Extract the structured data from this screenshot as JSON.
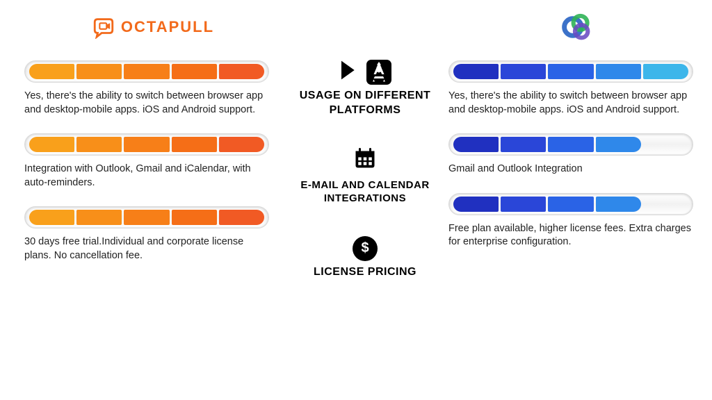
{
  "brands": {
    "left": {
      "name": "OCTAPULL",
      "name_color": "#f26a1b",
      "icon_color": "#f26a1b"
    },
    "right": {
      "ring_colors": [
        "#2b66c4",
        "#2fb357",
        "#7e57c2"
      ]
    }
  },
  "palette": {
    "left_segments": [
      "#f9a01b",
      "#f88f19",
      "#f77f18",
      "#f56e17",
      "#f15a24"
    ],
    "right_segments": [
      "#2030c0",
      "#2a46d8",
      "#2a63e6",
      "#2f88ea",
      "#3db6ea"
    ]
  },
  "rows": [
    {
      "title": "USAGE ON DIFFERENT PLATFORMS",
      "icon": "platforms",
      "left": {
        "filled": 5,
        "text": "Yes, there's the ability to switch between browser app and desktop-mobile apps. iOS and Android support."
      },
      "right": {
        "filled": 5,
        "text": "Yes, there's the ability to switch between browser app and desktop-mobile apps. iOS and Android support."
      }
    },
    {
      "title": "E-MAIL AND CALENDAR INTEGRATIONS",
      "icon": "calendar",
      "left": {
        "filled": 5,
        "text": "Integration with Outlook, Gmail and iCalendar, with auto-reminders."
      },
      "right": {
        "filled": 4,
        "text": "Gmail and Outlook Integration"
      }
    },
    {
      "title": "LICENSE PRICING",
      "icon": "dollar",
      "left": {
        "filled": 5,
        "text": "30 days free trial.Individual and corporate license plans. No cancellation fee."
      },
      "right": {
        "filled": 4,
        "text": "Free plan available, higher license fees. Extra charges for enterprise configuration."
      }
    }
  ],
  "style": {
    "segment_total": 5,
    "desc_color": "#222222",
    "title_color": "#000000"
  }
}
